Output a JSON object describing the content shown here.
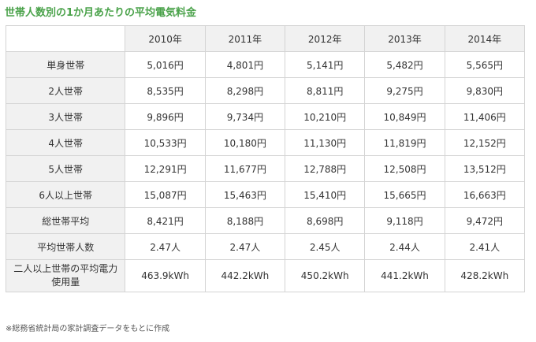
{
  "title": "世帯人数別の1か月あたりの平均電気料金",
  "table": {
    "corner": "",
    "years": [
      "2010年",
      "2011年",
      "2012年",
      "2013年",
      "2014年"
    ],
    "rows": [
      {
        "label": "単身世帯",
        "values": [
          "5,016円",
          "4,801円",
          "5,141円",
          "5,482円",
          "5,565円"
        ]
      },
      {
        "label": "2人世帯",
        "values": [
          "8,535円",
          "8,298円",
          "8,811円",
          "9,275円",
          "9,830円"
        ]
      },
      {
        "label": "3人世帯",
        "values": [
          "9,896円",
          "9,734円",
          "10,210円",
          "10,849円",
          "11,406円"
        ]
      },
      {
        "label": "4人世帯",
        "values": [
          "10,533円",
          "10,180円",
          "11,130円",
          "11,819円",
          "12,152円"
        ]
      },
      {
        "label": "5人世帯",
        "values": [
          "12,291円",
          "11,677円",
          "12,788円",
          "12,508円",
          "13,512円"
        ]
      },
      {
        "label": "6人以上世帯",
        "values": [
          "15,087円",
          "15,463円",
          "15,410円",
          "15,665円",
          "16,663円"
        ]
      },
      {
        "label": "総世帯平均",
        "values": [
          "8,421円",
          "8,188円",
          "8,698円",
          "9,118円",
          "9,472円"
        ]
      },
      {
        "label": "平均世帯人数",
        "values": [
          "2.47人",
          "2.47人",
          "2.45人",
          "2.44人",
          "2.41人"
        ]
      },
      {
        "label": "二人以上世帯の平均電力\n使用量",
        "values": [
          "463.9kWh",
          "442.2kWh",
          "450.2kWh",
          "441.2kWh",
          "428.2kWh"
        ]
      }
    ]
  },
  "footnote": "※総務省統計局の家計調査データをもとに作成",
  "colors": {
    "title": "#4aa24a",
    "header_bg": "#f1f1f1",
    "border": "#d4d4d4"
  }
}
